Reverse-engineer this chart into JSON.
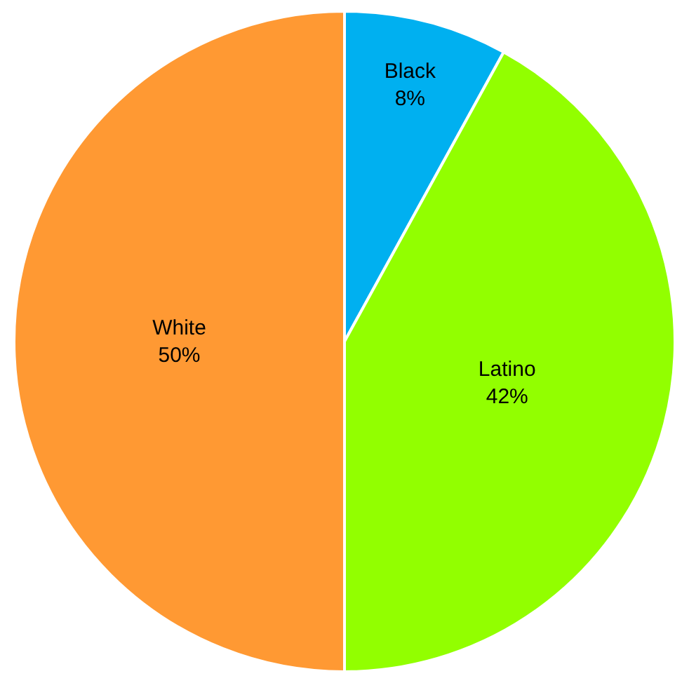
{
  "chart_data": {
    "type": "pie",
    "categories": [
      "Black",
      "Latino",
      "White"
    ],
    "values": [
      8,
      42,
      50
    ],
    "colors": [
      "#00b0f0",
      "#92ff00",
      "#ff9933"
    ],
    "value_labels": [
      "8%",
      "42%",
      "50%"
    ],
    "legend": false
  }
}
